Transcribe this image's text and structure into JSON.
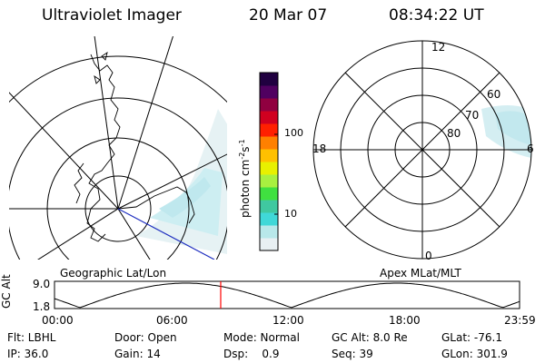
{
  "header": {
    "instrument": "Ultraviolet Imager",
    "date": "20 Mar 07",
    "time": "08:34:22 UT"
  },
  "left_panel": {
    "caption": "Geographic Lat/Lon"
  },
  "right_panel": {
    "caption": "Apex MLat/MLT",
    "mlt_labels": [
      "12",
      "18",
      "6",
      "0"
    ],
    "mlat_labels": [
      "60",
      "70",
      "80"
    ]
  },
  "colorbar": {
    "unit_label": "photon cm",
    "unit_exp1": "-2",
    "unit_mid": "s",
    "unit_exp2": "-1",
    "tick_labels": [
      "100",
      "10"
    ],
    "colors": [
      "#e8f0f3",
      "#b8e8ea",
      "#40d8d8",
      "#40c8a0",
      "#40e040",
      "#a8f040",
      "#e8f000",
      "#ffc000",
      "#ff8000",
      "#ff2000",
      "#d00020",
      "#900040",
      "#500060",
      "#200040"
    ]
  },
  "altitude_plot": {
    "ylabel": "GC Alt",
    "y_ticks": [
      "9.0",
      "1.8"
    ],
    "x_ticks": [
      "00:00",
      "06:00",
      "12:00",
      "18:00",
      "23:59"
    ],
    "current_time_fraction": 0.3574,
    "marker_color": "#ff0000"
  },
  "footer": {
    "rows": [
      [
        "Flt: LBHL",
        "Door: Open",
        "Mode: Normal",
        "GC Alt: 8.0 Re",
        "GLat: -76.1"
      ],
      [
        "IP: 36.0",
        "Gain: 14",
        "Dsp:    0.9",
        "Seq: 39",
        "GLon: 301.9"
      ]
    ]
  }
}
